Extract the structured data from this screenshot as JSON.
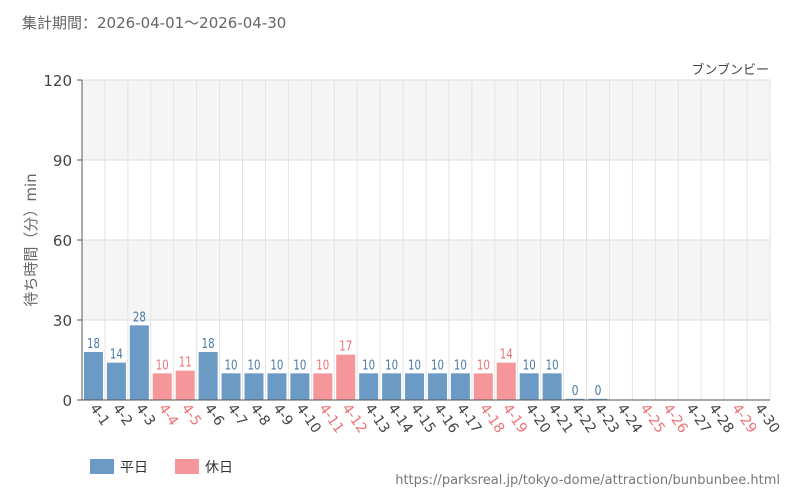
{
  "header": {
    "period_label": "集計期間：2026-04-01～2026-04-30"
  },
  "footer": {
    "source_url": "https://parksreal.jp/tokyo-dome/attraction/bunbunbee.html"
  },
  "colors": {
    "weekday": "#6b9ac4",
    "holiday": "#f4969a",
    "weekday_label": "#4a7aa6",
    "holiday_label": "#ee7377"
  },
  "chart_data": {
    "type": "bar",
    "title": "ブンブンビー",
    "ylabel": "待ち時間（分）min",
    "xlabel": "",
    "ylim": [
      0,
      120
    ],
    "yticks": [
      0,
      30,
      60,
      90,
      120
    ],
    "grid": true,
    "legend_position": "bottom-left",
    "categories": [
      "4-1",
      "4-2",
      "4-3",
      "4-4",
      "4-5",
      "4-6",
      "4-7",
      "4-8",
      "4-9",
      "4-10",
      "4-11",
      "4-12",
      "4-13",
      "4-14",
      "4-15",
      "4-16",
      "4-17",
      "4-18",
      "4-19",
      "4-20",
      "4-21",
      "4-22",
      "4-23",
      "4-24",
      "4-25",
      "4-26",
      "4-27",
      "4-28",
      "4-29",
      "4-30"
    ],
    "values": [
      18,
      14,
      28,
      10,
      11,
      18,
      10,
      10,
      10,
      10,
      10,
      17,
      10,
      10,
      10,
      10,
      10,
      10,
      14,
      10,
      10,
      0,
      0,
      null,
      null,
      null,
      null,
      null,
      null,
      null
    ],
    "day_types": [
      "weekday",
      "weekday",
      "weekday",
      "holiday",
      "holiday",
      "weekday",
      "weekday",
      "weekday",
      "weekday",
      "weekday",
      "holiday",
      "holiday",
      "weekday",
      "weekday",
      "weekday",
      "weekday",
      "weekday",
      "holiday",
      "holiday",
      "weekday",
      "weekday",
      "weekday",
      "weekday",
      "weekday",
      "holiday",
      "holiday",
      "weekday",
      "weekday",
      "holiday",
      "weekday"
    ],
    "legend": [
      {
        "key": "weekday",
        "label": "平日"
      },
      {
        "key": "holiday",
        "label": "休日"
      }
    ]
  }
}
